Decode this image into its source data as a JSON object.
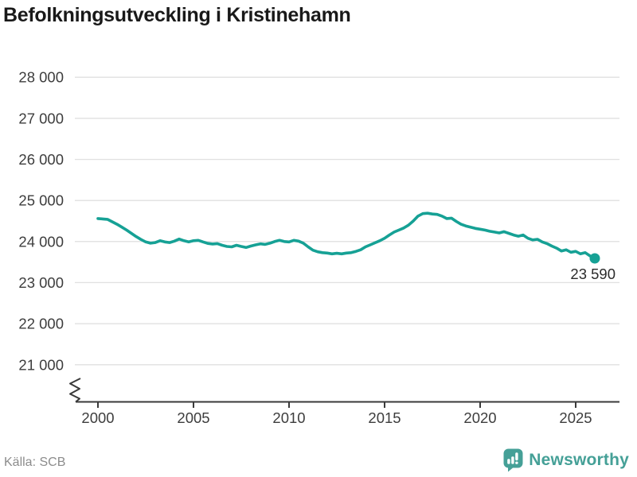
{
  "source": {
    "label": "Källa: SCB"
  },
  "branding": {
    "wordmark": "Newsworthy"
  },
  "chart_data": {
    "type": "line",
    "title": "Befolkningsutveckling i Kristinehamn",
    "xlabel": "",
    "ylabel": "",
    "x_ticks": [
      "2000",
      "2005",
      "2010",
      "2015",
      "2020",
      "2025"
    ],
    "y_ticks": [
      {
        "label": "28 000",
        "value": 28000
      },
      {
        "label": "27 000",
        "value": 27000
      },
      {
        "label": "26 000",
        "value": 26000
      },
      {
        "label": "25 000",
        "value": 25000
      },
      {
        "label": "24 000",
        "value": 24000
      },
      {
        "label": "23 000",
        "value": 23000
      },
      {
        "label": "22 000",
        "value": 22000
      },
      {
        "label": "21 000",
        "value": 21000
      }
    ],
    "xlim": [
      1998.8,
      2027.3
    ],
    "ylim": [
      20800,
      28200
    ],
    "grid": true,
    "legend": "none",
    "axis_break_on_y": true,
    "series": [
      {
        "name": "Befolkning",
        "points": [
          [
            2000.0,
            24560
          ],
          [
            2000.25,
            24550
          ],
          [
            2000.5,
            24540
          ],
          [
            2000.75,
            24480
          ],
          [
            2001.0,
            24420
          ],
          [
            2001.25,
            24350
          ],
          [
            2001.5,
            24280
          ],
          [
            2001.75,
            24200
          ],
          [
            2002.0,
            24120
          ],
          [
            2002.25,
            24050
          ],
          [
            2002.5,
            23990
          ],
          [
            2002.75,
            23960
          ],
          [
            2003.0,
            23975
          ],
          [
            2003.25,
            24020
          ],
          [
            2003.5,
            23990
          ],
          [
            2003.75,
            23975
          ],
          [
            2004.0,
            24010
          ],
          [
            2004.25,
            24060
          ],
          [
            2004.5,
            24020
          ],
          [
            2004.75,
            23990
          ],
          [
            2005.0,
            24020
          ],
          [
            2005.25,
            24030
          ],
          [
            2005.5,
            23990
          ],
          [
            2005.75,
            23955
          ],
          [
            2006.0,
            23940
          ],
          [
            2006.25,
            23950
          ],
          [
            2006.5,
            23910
          ],
          [
            2006.75,
            23880
          ],
          [
            2007.0,
            23870
          ],
          [
            2007.25,
            23910
          ],
          [
            2007.5,
            23880
          ],
          [
            2007.75,
            23855
          ],
          [
            2008.0,
            23890
          ],
          [
            2008.25,
            23920
          ],
          [
            2008.5,
            23945
          ],
          [
            2008.75,
            23930
          ],
          [
            2009.0,
            23960
          ],
          [
            2009.25,
            24000
          ],
          [
            2009.5,
            24030
          ],
          [
            2009.75,
            24000
          ],
          [
            2010.0,
            23990
          ],
          [
            2010.25,
            24030
          ],
          [
            2010.5,
            24010
          ],
          [
            2010.75,
            23960
          ],
          [
            2011.0,
            23870
          ],
          [
            2011.25,
            23790
          ],
          [
            2011.5,
            23750
          ],
          [
            2011.75,
            23730
          ],
          [
            2012.0,
            23720
          ],
          [
            2012.25,
            23700
          ],
          [
            2012.5,
            23715
          ],
          [
            2012.75,
            23700
          ],
          [
            2013.0,
            23720
          ],
          [
            2013.25,
            23730
          ],
          [
            2013.5,
            23760
          ],
          [
            2013.75,
            23800
          ],
          [
            2014.0,
            23870
          ],
          [
            2014.25,
            23920
          ],
          [
            2014.5,
            23970
          ],
          [
            2014.75,
            24020
          ],
          [
            2015.0,
            24080
          ],
          [
            2015.25,
            24160
          ],
          [
            2015.5,
            24230
          ],
          [
            2015.75,
            24280
          ],
          [
            2016.0,
            24330
          ],
          [
            2016.25,
            24400
          ],
          [
            2016.5,
            24500
          ],
          [
            2016.75,
            24620
          ],
          [
            2017.0,
            24680
          ],
          [
            2017.25,
            24690
          ],
          [
            2017.5,
            24670
          ],
          [
            2017.75,
            24660
          ],
          [
            2018.0,
            24620
          ],
          [
            2018.25,
            24560
          ],
          [
            2018.5,
            24570
          ],
          [
            2018.75,
            24490
          ],
          [
            2019.0,
            24420
          ],
          [
            2019.25,
            24380
          ],
          [
            2019.5,
            24350
          ],
          [
            2019.75,
            24320
          ],
          [
            2020.0,
            24300
          ],
          [
            2020.25,
            24280
          ],
          [
            2020.5,
            24250
          ],
          [
            2020.75,
            24230
          ],
          [
            2021.0,
            24210
          ],
          [
            2021.25,
            24240
          ],
          [
            2021.5,
            24200
          ],
          [
            2021.75,
            24160
          ],
          [
            2022.0,
            24130
          ],
          [
            2022.25,
            24160
          ],
          [
            2022.5,
            24080
          ],
          [
            2022.75,
            24040
          ],
          [
            2023.0,
            24055
          ],
          [
            2023.25,
            23990
          ],
          [
            2023.5,
            23950
          ],
          [
            2023.75,
            23890
          ],
          [
            2024.0,
            23840
          ],
          [
            2024.25,
            23770
          ],
          [
            2024.5,
            23800
          ],
          [
            2024.75,
            23740
          ],
          [
            2025.0,
            23760
          ],
          [
            2025.25,
            23700
          ],
          [
            2025.5,
            23730
          ],
          [
            2025.75,
            23650
          ],
          [
            2026.0,
            23590
          ]
        ]
      }
    ],
    "end_marker": {
      "x": 2026.0,
      "value": 23590,
      "label": "23 590"
    },
    "colors": {
      "line": "#16a195",
      "grid": "#e1e1e1",
      "axis": "#3a3a3a",
      "tick_text": "#3d3d3d",
      "end_label_text": "#2b2b2b",
      "brand": "#45a097"
    }
  }
}
